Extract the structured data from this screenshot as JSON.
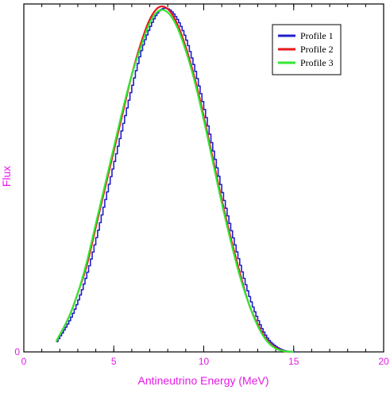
{
  "chart_data": {
    "type": "line",
    "xlabel": "Antineutrino Energy (MeV)",
    "ylabel": "Flux",
    "xlim": [
      0,
      20
    ],
    "ylim": [
      0,
      1
    ],
    "x_ticks": [
      "0",
      "5",
      "10",
      "15",
      "20"
    ],
    "y_ticks": [
      "0"
    ],
    "grid": false,
    "legend_position": "top-right",
    "axis_label_color": "#e619e6",
    "series": [
      {
        "name": "Profile 1",
        "color": "#1f1fcc",
        "style": "step",
        "x": [
          1.8,
          2.5,
          3.0,
          3.5,
          4.0,
          4.5,
          5.0,
          5.5,
          6.0,
          6.5,
          7.0,
          7.5,
          8.0,
          8.5,
          9.0,
          9.5,
          10.0,
          10.5,
          11.0,
          11.5,
          12.0,
          12.5,
          13.0,
          13.5,
          14.0,
          14.5,
          15.0
        ],
        "values": [
          0.03,
          0.09,
          0.15,
          0.23,
          0.33,
          0.44,
          0.55,
          0.66,
          0.77,
          0.87,
          0.94,
          0.985,
          0.99,
          0.96,
          0.9,
          0.81,
          0.7,
          0.58,
          0.46,
          0.35,
          0.25,
          0.16,
          0.09,
          0.04,
          0.015,
          0.003,
          0.0
        ]
      },
      {
        "name": "Profile 2",
        "color": "#e61919",
        "style": "line",
        "x": [
          1.8,
          2.5,
          3.0,
          3.5,
          4.0,
          4.5,
          5.0,
          5.5,
          6.0,
          6.5,
          7.0,
          7.5,
          8.0,
          8.5,
          9.0,
          9.5,
          10.0,
          10.5,
          11.0,
          11.5,
          12.0,
          12.5,
          13.0,
          13.5,
          14.0,
          14.5,
          15.0
        ],
        "values": [
          0.03,
          0.1,
          0.17,
          0.25,
          0.36,
          0.47,
          0.58,
          0.69,
          0.8,
          0.89,
          0.96,
          0.995,
          0.99,
          0.95,
          0.88,
          0.79,
          0.68,
          0.56,
          0.44,
          0.33,
          0.23,
          0.14,
          0.08,
          0.035,
          0.012,
          0.002,
          0.0
        ]
      },
      {
        "name": "Profile 3",
        "color": "#33e633",
        "style": "line",
        "x": [
          1.8,
          2.5,
          3.0,
          3.5,
          4.0,
          4.5,
          5.0,
          5.5,
          6.0,
          6.5,
          7.0,
          7.5,
          8.0,
          8.5,
          9.0,
          9.5,
          10.0,
          10.5,
          11.0,
          11.5,
          12.0,
          12.5,
          13.0,
          13.5,
          14.0,
          14.5,
          15.0
        ],
        "values": [
          0.03,
          0.1,
          0.17,
          0.26,
          0.37,
          0.48,
          0.59,
          0.7,
          0.8,
          0.88,
          0.95,
          0.985,
          0.98,
          0.94,
          0.87,
          0.78,
          0.67,
          0.55,
          0.43,
          0.32,
          0.22,
          0.14,
          0.075,
          0.032,
          0.01,
          0.002,
          0.0
        ]
      }
    ]
  }
}
